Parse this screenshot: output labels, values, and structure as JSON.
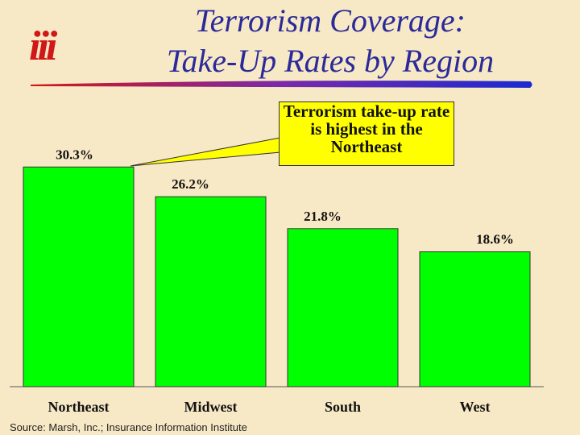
{
  "header": {
    "title_line1": "Terrorism Coverage:",
    "title_line2": "Take-Up Rates  by Region",
    "logo_text": "iii"
  },
  "callout": {
    "text": "Terrorism take-up rate is highest in the Northeast"
  },
  "source": "Source:  Marsh, Inc.; Insurance Information Institute",
  "colors": {
    "bar": "#00ff00",
    "title": "#2a2a9a",
    "callout": "#ffff00",
    "background": "#f8e9c6",
    "logo": "#d11818"
  },
  "chart_data": {
    "type": "bar",
    "categories": [
      "Northeast",
      "Midwest",
      "South",
      "West"
    ],
    "values": [
      30.3,
      26.2,
      21.8,
      18.6
    ],
    "data_labels": [
      "30.3%",
      "26.2%",
      "21.8%",
      "18.6%"
    ],
    "title": "",
    "xlabel": "",
    "ylabel": "",
    "ylim": [
      0,
      35
    ],
    "grid": false,
    "legend": "none"
  }
}
